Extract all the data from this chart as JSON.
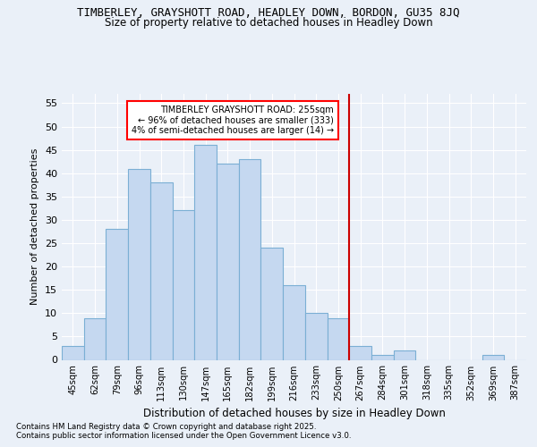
{
  "title1": "TIMBERLEY, GRAYSHOTT ROAD, HEADLEY DOWN, BORDON, GU35 8JQ",
  "title2": "Size of property relative to detached houses in Headley Down",
  "xlabel": "Distribution of detached houses by size in Headley Down",
  "ylabel": "Number of detached properties",
  "categories": [
    "45sqm",
    "62sqm",
    "79sqm",
    "96sqm",
    "113sqm",
    "130sqm",
    "147sqm",
    "165sqm",
    "182sqm",
    "199sqm",
    "216sqm",
    "233sqm",
    "250sqm",
    "267sqm",
    "284sqm",
    "301sqm",
    "318sqm",
    "335sqm",
    "352sqm",
    "369sqm",
    "387sqm"
  ],
  "bar_values": [
    3,
    9,
    28,
    41,
    38,
    32,
    46,
    42,
    43,
    24,
    16,
    10,
    9,
    3,
    1,
    2,
    0,
    0,
    0,
    1,
    0
  ],
  "bar_color": "#c5d8f0",
  "bar_edge_color": "#7bafd4",
  "vline_index": 12,
  "vline_color": "#cc0000",
  "annotation_title": "TIMBERLEY GRAYSHOTT ROAD: 255sqm",
  "annotation_line1": "← 96% of detached houses are smaller (333)",
  "annotation_line2": "4% of semi-detached houses are larger (14) →",
  "annotation_box_color": "red",
  "ylim": [
    0,
    57
  ],
  "yticks": [
    0,
    5,
    10,
    15,
    20,
    25,
    30,
    35,
    40,
    45,
    50,
    55
  ],
  "footnote1": "Contains HM Land Registry data © Crown copyright and database right 2025.",
  "footnote2": "Contains public sector information licensed under the Open Government Licence v3.0.",
  "bg_color": "#eaf0f8",
  "plot_bg_color": "#eaf0f8"
}
